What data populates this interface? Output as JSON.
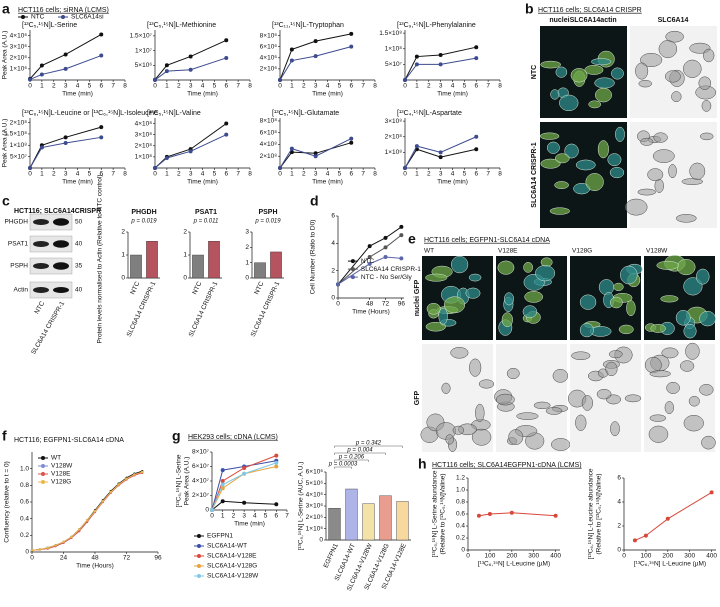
{
  "panels": [
    {
      "letter": "a",
      "heading": "HCT116 cells; siRNA (LCMS)"
    },
    {
      "letter": "b",
      "heading": "HCT116 cells; SLC6A14 CRISPR",
      "columns": [
        "nucleiSLC6A14actin",
        "SLC6A14"
      ],
      "rows": [
        "NTC",
        "SLC6A14 CRISPR-1"
      ]
    },
    {
      "letter": "c",
      "blot": {
        "title": "HCT116; SLC6A14CRISPR",
        "rows": [
          "PHGDH",
          "PSAT1",
          "PSPH",
          "Actin"
        ],
        "markers": [
          "50",
          "40",
          "35",
          "40"
        ],
        "lanes": [
          "NTC",
          "SLC6A14 CRISPR-1"
        ]
      }
    },
    {
      "letter": "d"
    },
    {
      "letter": "e",
      "heading": "HCT116 cells; EGFPN1-SLC6A14 cDNA",
      "columns": [
        "WT",
        "V128E",
        "V128G",
        "V128W"
      ],
      "rows": [
        "nuclei GFP",
        "GFP"
      ]
    },
    {
      "letter": "f"
    },
    {
      "letter": "g",
      "heading": "HEK293 cells; cDNA (LCMS)"
    },
    {
      "letter": "h",
      "heading": "HCT116 cells; SLC6A14EGFPN1-cDNA (LCMS)"
    }
  ],
  "chart_data": [
    {
      "type": "line",
      "title": "[¹³C₅,¹⁵N]L-Serine",
      "ylabel": "Peak Area (A.U.)",
      "xlabel": "Time (min)",
      "legend": "top",
      "x": [
        0,
        1,
        3,
        6
      ],
      "xlim": [
        0,
        8
      ],
      "xticks": [
        0,
        1,
        2,
        3,
        4,
        5,
        6,
        7,
        8
      ],
      "ylim": [
        0,
        4500000
      ],
      "yticks": [
        {
          "value": 1000000,
          "label": "1×10⁶"
        },
        {
          "value": 2000000,
          "label": "2×10⁶"
        },
        {
          "value": 3000000,
          "label": "3×10⁶"
        },
        {
          "value": 4000000,
          "label": "4×10⁶"
        }
      ],
      "series": [
        {
          "name": "NTC",
          "color": "#111111",
          "values": [
            100000,
            1300000,
            2300000,
            4100000
          ]
        },
        {
          "name": "SLC6A14si",
          "color": "#3d4b8f",
          "values": [
            50000,
            500000,
            1000000,
            2200000
          ]
        }
      ]
    },
    {
      "type": "line",
      "title": "[¹³C₅,¹⁵N]L-Methionine",
      "xlabel": "Time (min)",
      "x": [
        0,
        1,
        3,
        6
      ],
      "xlim": [
        0,
        8
      ],
      "xticks": [
        0,
        1,
        2,
        3,
        4,
        5,
        6,
        7,
        8
      ],
      "ylim": [
        0,
        17000000
      ],
      "yticks": [
        {
          "value": 5000000,
          "label": "5×10⁶"
        },
        {
          "value": 10000000,
          "label": "1×10⁷"
        },
        {
          "value": 15000000,
          "label": "1.5×10⁷"
        }
      ],
      "series": [
        {
          "color": "#111111",
          "values": [
            100000,
            5000000,
            8000000,
            13500000
          ]
        },
        {
          "color": "#3d4b8f",
          "values": [
            0,
            3000000,
            3500000,
            7500000
          ]
        }
      ]
    },
    {
      "type": "line",
      "title": "[¹³C₁₁,¹⁵N]L-Tryptophan",
      "xlabel": "Time (min)",
      "x": [
        0,
        1,
        3,
        6
      ],
      "xlim": [
        0,
        8
      ],
      "xticks": [
        0,
        1,
        2,
        3,
        4,
        5,
        6,
        7,
        8
      ],
      "ylim": [
        0,
        9000000
      ],
      "yticks": [
        {
          "value": 2000000,
          "label": "2×10⁶"
        },
        {
          "value": 4000000,
          "label": "4×10⁶"
        },
        {
          "value": 6000000,
          "label": "6×10⁶"
        },
        {
          "value": 8000000,
          "label": "8×10⁶"
        }
      ],
      "series": [
        {
          "color": "#111111",
          "values": [
            0,
            5500000,
            7000000,
            8300000
          ]
        },
        {
          "color": "#3d4b8f",
          "values": [
            0,
            3500000,
            4300000,
            6000000
          ]
        }
      ]
    },
    {
      "type": "line",
      "title": "[¹³C₉,¹⁵N]L-Phenylalanine",
      "xlabel": "Time (min)",
      "x": [
        0,
        1,
        3,
        6
      ],
      "xlim": [
        0,
        8
      ],
      "xticks": [
        0,
        1,
        2,
        3,
        4,
        5,
        6,
        7,
        8
      ],
      "ylim": [
        0,
        160000000
      ],
      "yticks": [
        {
          "value": 50000000,
          "label": "5×10⁷"
        },
        {
          "value": 100000000,
          "label": "1×10⁸"
        },
        {
          "value": 150000000,
          "label": "1.5×10⁸"
        }
      ],
      "series": [
        {
          "color": "#111111",
          "values": [
            0,
            75000000,
            80000000,
            105000000
          ]
        },
        {
          "color": "#3d4b8f",
          "values": [
            0,
            50000000,
            50000000,
            70000000
          ]
        }
      ]
    },
    {
      "type": "line",
      "title": "[¹³C₆,¹⁵N]L-Leucine or [¹³C₆,¹⁵N]L-Isoleucine",
      "ylabel": "Peak Area (A.U.)",
      "xlabel": "Time (min)",
      "x": [
        0,
        1,
        3,
        6
      ],
      "xlim": [
        0,
        8
      ],
      "xticks": [
        0,
        1,
        2,
        3,
        4,
        5,
        6,
        7,
        8
      ],
      "ylim": [
        0,
        220000000
      ],
      "yticks": [
        {
          "value": 50000000,
          "label": "5×10⁷"
        },
        {
          "value": 100000000,
          "label": "1×10⁸"
        },
        {
          "value": 150000000,
          "label": "1.5×10⁸"
        },
        {
          "value": 200000000,
          "label": "2×10⁸"
        }
      ],
      "series": [
        {
          "color": "#111111",
          "values": [
            0,
            100000000,
            135000000,
            180000000
          ]
        },
        {
          "color": "#3d4b8f",
          "values": [
            0,
            90000000,
            110000000,
            135000000
          ]
        }
      ]
    },
    {
      "type": "line",
      "title": "[¹³C₅,¹⁵N]L-Valine",
      "xlabel": "Time (min)",
      "x": [
        0,
        1,
        3,
        6
      ],
      "xlim": [
        0,
        8
      ],
      "xticks": [
        0,
        1,
        2,
        3,
        4,
        5,
        6,
        7,
        8
      ],
      "ylim": [
        0,
        450000000
      ],
      "yticks": [
        {
          "value": 100000000,
          "label": "1×10⁸"
        },
        {
          "value": 200000000,
          "label": "2×10⁸"
        },
        {
          "value": 300000000,
          "label": "3×10⁸"
        },
        {
          "value": 400000000,
          "label": "4×10⁸"
        }
      ],
      "series": [
        {
          "color": "#111111",
          "values": [
            0,
            100000000,
            170000000,
            400000000
          ]
        },
        {
          "color": "#3d4b8f",
          "values": [
            0,
            90000000,
            150000000,
            300000000
          ]
        }
      ]
    },
    {
      "type": "line",
      "title": "[¹³C₅,¹⁵N]L-Glutamate",
      "xlabel": "Time (min)",
      "x": [
        0,
        1,
        3,
        6
      ],
      "xlim": [
        0,
        8
      ],
      "xticks": [
        0,
        1,
        2,
        3,
        4,
        5,
        6,
        7,
        8
      ],
      "ylim": [
        0,
        850000000
      ],
      "yticks": [
        {
          "value": 200000000,
          "label": "2×10⁸"
        },
        {
          "value": 400000000,
          "label": "4×10⁸"
        },
        {
          "value": 600000000,
          "label": "6×10⁸"
        },
        {
          "value": 800000000,
          "label": "8×10⁸"
        }
      ],
      "series": [
        {
          "color": "#111111",
          "values": [
            0,
            270000000,
            250000000,
            430000000
          ]
        },
        {
          "color": "#3d4b8f",
          "values": [
            0,
            330000000,
            200000000,
            500000000
          ]
        }
      ]
    },
    {
      "type": "line",
      "title": "[¹³C₄,¹⁵N]L-Aspartate",
      "xlabel": "Time (min)",
      "x": [
        0,
        1,
        3,
        6
      ],
      "xlim": [
        0,
        8
      ],
      "xticks": [
        0,
        1,
        2,
        3,
        4,
        5,
        6,
        7,
        8
      ],
      "ylim": [
        0,
        320000000
      ],
      "yticks": [
        {
          "value": 100000000,
          "label": "1×10⁸"
        },
        {
          "value": 200000000,
          "label": "2×10⁸"
        },
        {
          "value": 300000000,
          "label": "3×10⁸"
        }
      ],
      "series": [
        {
          "color": "#111111",
          "values": [
            0,
            120000000,
            70000000,
            120000000
          ]
        },
        {
          "color": "#3d4b8f",
          "values": [
            0,
            140000000,
            100000000,
            200000000
          ]
        }
      ]
    },
    {
      "type": "bar",
      "title": "PHGDH",
      "ylabel": "Protein levels normalised to Actin (Relative to NTC control)",
      "annotations": [
        "p = 0.019"
      ],
      "categories": [
        "NTC",
        "SLC6A14 CRISPR-1"
      ],
      "values": [
        1,
        1.6
      ],
      "colors": [
        "#7f7f7f",
        "#b5535e"
      ],
      "ylim": [
        0,
        2
      ],
      "yticks": [
        0,
        1,
        2
      ]
    },
    {
      "type": "bar",
      "title": "PSAT1",
      "annotations": [
        "p = 0.011"
      ],
      "categories": [
        "NTC",
        "SLC6A14 CRISPR-1"
      ],
      "values": [
        1,
        1.6
      ],
      "colors": [
        "#7f7f7f",
        "#b5535e"
      ],
      "ylim": [
        0,
        2
      ],
      "yticks": [
        0,
        1,
        2
      ]
    },
    {
      "type": "bar",
      "title": "PSPH",
      "annotations": [
        "p = 0.019"
      ],
      "categories": [
        "NTC",
        "SLC6A14 CRISPR-1"
      ],
      "values": [
        1,
        1.7
      ],
      "colors": [
        "#7f7f7f",
        "#b5535e"
      ],
      "ylim": [
        0,
        3
      ],
      "yticks": [
        0,
        1,
        2,
        3
      ]
    },
    {
      "type": "line",
      "ylabel": "Cell Number (Ratio to D0)",
      "xlabel": "Time (Hours)",
      "legend": "lower-right",
      "x": [
        0,
        48,
        72,
        96
      ],
      "xlim": [
        0,
        100
      ],
      "xticks": [
        0,
        48,
        72,
        96
      ],
      "ylim": [
        0,
        6
      ],
      "yticks": [
        0,
        2,
        4,
        6
      ],
      "series": [
        {
          "name": "NTC",
          "color": "#111111",
          "values": [
            1,
            3.8,
            4.4,
            5.2
          ]
        },
        {
          "name": "SLC6A14 CRISPR-1",
          "color": "#555555",
          "values": [
            1,
            3,
            3.7,
            4.6
          ]
        },
        {
          "name": "NTC - No Ser/Gly",
          "color": "#5a64a8",
          "values": [
            1,
            2.5,
            3,
            2.9
          ]
        }
      ]
    },
    {
      "type": "line",
      "title": "HCT116; EGFPN1-SLC6A14 cDNA",
      "ylabel": "Confluency (relative to t = 0)",
      "xlabel": "Time (Hours)",
      "legend": "top-left",
      "x": [
        0,
        6,
        12,
        18,
        24,
        30,
        36,
        42,
        48,
        54,
        60,
        66,
        72,
        78,
        84
      ],
      "xlim": [
        0,
        96
      ],
      "xticks": [
        0,
        24,
        48,
        72,
        96
      ],
      "ylim": [
        0,
        1.2
      ],
      "yticks": [
        0,
        0.2,
        0.4,
        0.6,
        0.8,
        {
          "value": 1,
          "label": "1.0"
        }
      ],
      "series": [
        {
          "name": "WT",
          "color": "#111111",
          "values": [
            0.02,
            0.03,
            0.05,
            0.08,
            0.12,
            0.18,
            0.27,
            0.38,
            0.5,
            0.62,
            0.73,
            0.82,
            0.89,
            0.94,
            0.97
          ]
        },
        {
          "name": "V128W",
          "color": "#7f8fd0",
          "values": [
            0.02,
            0.03,
            0.05,
            0.07,
            0.11,
            0.17,
            0.26,
            0.37,
            0.49,
            0.61,
            0.72,
            0.81,
            0.88,
            0.93,
            0.96
          ]
        },
        {
          "name": "V128E",
          "color": "#d9534f",
          "values": [
            0.02,
            0.03,
            0.04,
            0.07,
            0.11,
            0.17,
            0.25,
            0.36,
            0.48,
            0.6,
            0.71,
            0.8,
            0.87,
            0.92,
            0.95
          ]
        },
        {
          "name": "V128G",
          "color": "#e8b84a",
          "values": [
            0.02,
            0.03,
            0.05,
            0.08,
            0.12,
            0.18,
            0.27,
            0.38,
            0.49,
            0.61,
            0.72,
            0.81,
            0.88,
            0.93,
            0.96
          ]
        }
      ]
    },
    {
      "type": "line",
      "ylabel": [
        "[¹³C₅,¹⁵N] L-Serine",
        "Peak Area (A.U.)"
      ],
      "xlabel": "Time (min)",
      "legend": "below",
      "x": [
        0,
        1,
        3,
        6
      ],
      "xlim": [
        0,
        7
      ],
      "xticks": [
        0,
        1,
        2,
        3,
        4,
        5,
        6,
        7
      ],
      "ylim": [
        0,
        80000000
      ],
      "yticks": [
        0,
        {
          "value": 20000000,
          "label": "2×10⁷"
        },
        {
          "value": 40000000,
          "label": "4×10⁷"
        },
        {
          "value": 60000000,
          "label": "6×10⁷"
        },
        {
          "value": 80000000,
          "label": "8×10⁷"
        }
      ],
      "series": [
        {
          "name": "EGFPN1",
          "color": "#111111",
          "values": [
            0,
            12000000,
            10000000,
            8000000
          ]
        },
        {
          "name": "SLC6A14-WT",
          "color": "#3b4fa8",
          "values": [
            0,
            55000000,
            60000000,
            68000000
          ]
        },
        {
          "name": "SLC6A14-V128E",
          "color": "#d94a3a",
          "values": [
            0,
            40000000,
            58000000,
            75000000
          ]
        },
        {
          "name": "SLC6A14-V128G",
          "color": "#e8a33a",
          "values": [
            0,
            30000000,
            50000000,
            60000000
          ]
        },
        {
          "name": "SLC6A14-V128W",
          "color": "#7fc8e8",
          "values": [
            0,
            35000000,
            50000000,
            65000000
          ]
        }
      ]
    },
    {
      "type": "bar",
      "ylabel": "[¹³C₅,¹⁵N] L-Serine (AUC, A.U.)",
      "annotations": [
        "p = 0.342",
        "p = 0.004",
        "p = 0.206",
        "p = 0.0003"
      ],
      "categories": [
        "EGFPN1",
        "SLC6A14-WT",
        "SLC6A14-V128W",
        "SLC6A14-V128G",
        "SLC6A14-V128E"
      ],
      "values": [
        2800000,
        4500000,
        3200000,
        3900000,
        3400000
      ],
      "colors": [
        "#8a8a8a",
        "#aeb4e8",
        "#f4e3a8",
        "#e99d8f",
        "#f7d9a0"
      ],
      "ylim": [
        0,
        6000000
      ],
      "yticks": [
        0,
        {
          "value": 1000000,
          "label": "1×10⁶"
        },
        {
          "value": 2000000,
          "label": "2×10⁶"
        },
        {
          "value": 3000000,
          "label": "3×10⁶"
        },
        {
          "value": 4000000,
          "label": "4×10⁶"
        },
        {
          "value": 5000000,
          "label": "5×10⁶"
        },
        {
          "value": 6000000,
          "label": "6×10⁶"
        }
      ]
    },
    {
      "type": "line",
      "ylabel": [
        "[¹³C₅,¹⁵N] L-Serine abundance",
        "(Relative to [¹³C₅,¹⁵N]Valine)"
      ],
      "xlabel": "[¹³C₆,¹⁵N] L-Leucine (µM)",
      "x": [
        50,
        100,
        200,
        400
      ],
      "xlim": [
        0,
        420
      ],
      "xticks": [
        0,
        100,
        200,
        300,
        400
      ],
      "ylim": [
        0,
        1.2
      ],
      "yticks": [
        0,
        0.2,
        0.4,
        0.6,
        0.8,
        {
          "value": 1,
          "label": "1.0"
        },
        1.2
      ],
      "series": [
        {
          "color": "#d9473a",
          "values": [
            0.57,
            0.6,
            0.62,
            0.57
          ]
        }
      ]
    },
    {
      "type": "line",
      "ylabel": [
        "[¹³C₆,¹⁵N] L-Leucine abundance",
        "(Relative to [¹³C₅,¹⁵N]Valine)"
      ],
      "xlabel": "[¹³C₆,¹⁵N] L-Leucine (µM)",
      "x": [
        50,
        100,
        200,
        400
      ],
      "xlim": [
        0,
        420
      ],
      "xticks": [
        0,
        100,
        200,
        300,
        400
      ],
      "ylim": [
        0,
        6
      ],
      "yticks": [
        0,
        2,
        4,
        6
      ],
      "series": [
        {
          "color": "#d9473a",
          "values": [
            0.8,
            1.2,
            2.6,
            4.8
          ]
        }
      ]
    }
  ]
}
